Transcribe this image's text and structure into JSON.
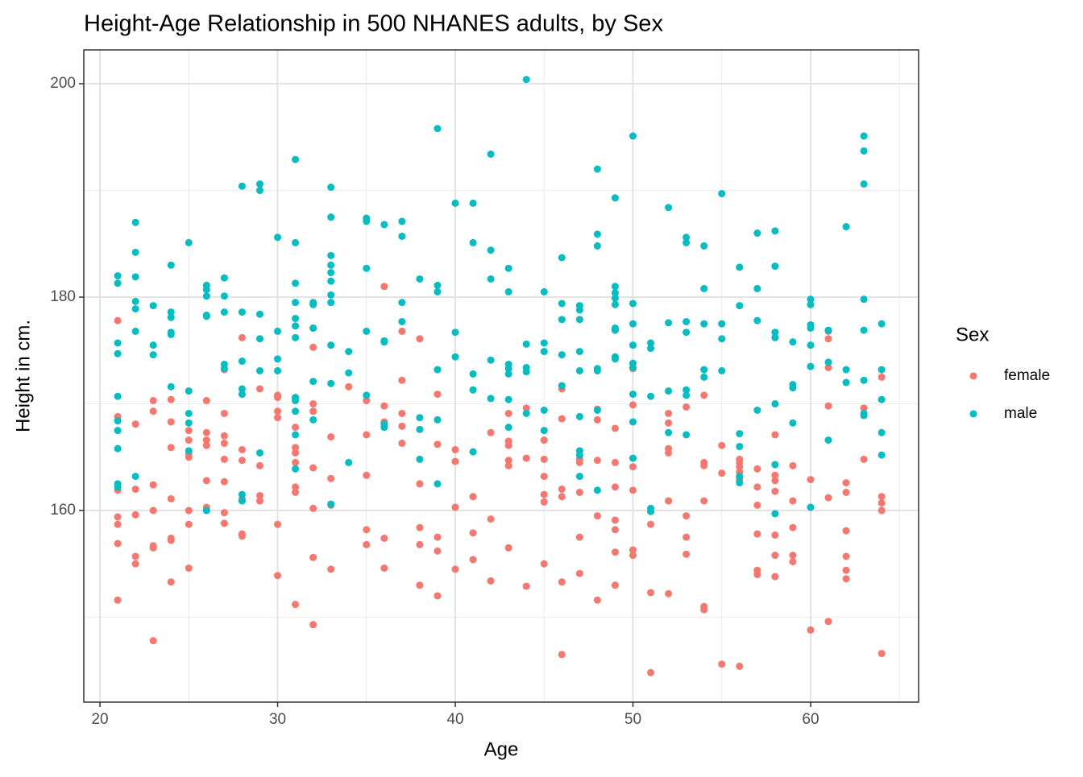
{
  "chart_data": {
    "type": "scatter",
    "title": "Height-Age Relationship in 500 NHANES adults, by Sex",
    "x_label": "Age",
    "y_label": "Height in cm.",
    "legend_title": "Sex",
    "legend": "right",
    "grid": true,
    "xlim": [
      19.09,
      66.08
    ],
    "xticks": [
      20,
      30,
      40,
      50,
      60
    ],
    "ylim": [
      142.04,
      203.17
    ],
    "yticks": [
      160,
      180,
      200
    ],
    "series": [
      {
        "name": "female",
        "color": "#F8766D",
        "x": [
          21,
          21,
          21,
          21,
          21,
          21,
          21,
          22,
          22,
          22,
          22,
          22,
          23,
          23,
          23,
          23,
          23,
          23,
          23,
          24,
          24,
          24,
          24,
          24,
          24,
          24,
          25,
          25,
          25,
          25,
          25,
          25,
          25,
          26,
          26,
          26,
          26,
          26,
          26,
          27,
          27,
          27,
          27,
          27,
          27,
          27,
          27,
          28,
          28,
          28,
          28,
          28,
          28,
          29,
          29,
          29,
          29,
          30,
          30,
          30,
          30,
          30,
          30,
          31,
          31,
          31,
          31,
          31,
          31,
          31,
          32,
          32,
          32,
          32,
          32,
          32,
          32,
          32,
          33,
          33,
          33,
          33,
          34,
          35,
          35,
          35,
          35,
          35,
          36,
          36,
          36,
          36,
          36,
          37,
          37,
          37,
          37,
          37,
          38,
          38,
          38,
          38,
          38,
          39,
          39,
          39,
          39,
          39,
          40,
          40,
          40,
          40,
          41,
          41,
          41,
          42,
          42,
          42,
          43,
          43,
          43,
          43,
          43,
          43,
          44,
          44,
          44,
          45,
          45,
          45,
          45,
          45,
          45,
          46,
          46,
          46,
          46,
          46,
          46,
          47,
          47,
          47,
          47,
          47,
          48,
          48,
          48,
          48,
          48,
          49,
          49,
          49,
          49,
          49,
          49,
          49,
          49,
          50,
          50,
          50,
          50,
          50,
          50,
          51,
          51,
          51,
          52,
          52,
          52,
          52,
          52,
          52,
          53,
          53,
          53,
          53,
          54,
          54,
          54,
          54,
          54,
          54,
          55,
          55,
          55,
          56,
          56,
          56,
          56,
          56,
          56,
          57,
          57,
          57,
          57,
          57,
          57,
          58,
          58,
          58,
          58,
          58,
          58,
          58,
          59,
          59,
          59,
          59,
          59,
          60,
          60,
          61,
          61,
          61,
          61,
          61,
          61,
          62,
          62,
          62,
          62,
          62,
          62,
          63,
          63,
          64,
          64,
          64,
          64,
          64
        ],
        "values": [
          177.8,
          168.8,
          161.9,
          159.4,
          158.7,
          156.9,
          151.6,
          168.1,
          162.0,
          159.6,
          155.7,
          155.0,
          170.3,
          169.3,
          162.4,
          160.0,
          156.7,
          156.5,
          147.8,
          170.4,
          168.3,
          165.9,
          161.1,
          157.4,
          157.2,
          153.3,
          167.5,
          166.6,
          165.3,
          165.0,
          160.0,
          158.7,
          154.6,
          170.3,
          167.3,
          166.6,
          166.1,
          162.8,
          160.3,
          173.2,
          169.1,
          167.0,
          166.3,
          164.8,
          162.7,
          159.8,
          158.8,
          176.2,
          165.7,
          164.7,
          161.1,
          157.8,
          157.6,
          171.4,
          164.2,
          161.4,
          160.9,
          170.8,
          170.6,
          169.3,
          168.7,
          158.7,
          153.9,
          167.8,
          165.9,
          165.4,
          164.5,
          162.2,
          161.7,
          151.2,
          177.1,
          175.3,
          170.0,
          169.3,
          164.0,
          160.2,
          155.6,
          149.3,
          166.9,
          163.0,
          160.5,
          154.5,
          171.6,
          170.3,
          167.1,
          163.3,
          158.2,
          156.8,
          181.0,
          169.8,
          168.3,
          157.4,
          154.6,
          176.8,
          172.2,
          169.1,
          167.9,
          166.3,
          176.1,
          162.5,
          158.4,
          156.8,
          153.0,
          170.9,
          166.2,
          157.5,
          156.2,
          152.0,
          165.7,
          164.6,
          160.3,
          154.5,
          161.3,
          157.9,
          155.4,
          167.3,
          159.2,
          153.4,
          169.1,
          166.5,
          166.1,
          164.7,
          164.2,
          156.5,
          169.6,
          164.9,
          152.9,
          166.6,
          164.8,
          163.2,
          161.5,
          160.8,
          155.0,
          171.4,
          168.6,
          162.0,
          161.3,
          153.3,
          146.5,
          164.8,
          164.5,
          161.7,
          157.5,
          154.1,
          169.5,
          168.5,
          164.7,
          159.5,
          151.6,
          176.9,
          167.7,
          164.5,
          162.2,
          159.1,
          158.2,
          156.1,
          153.0,
          173.3,
          169.9,
          164.1,
          161.9,
          156.3,
          155.8,
          158.7,
          152.3,
          144.8,
          169.1,
          168.2,
          165.8,
          165.4,
          160.9,
          152.2,
          169.7,
          159.5,
          157.5,
          155.9,
          170.8,
          164.5,
          164.2,
          160.9,
          151.0,
          150.7,
          166.1,
          163.5,
          145.6,
          164.8,
          164.5,
          164.1,
          163.6,
          162.9,
          145.4,
          163.9,
          162.2,
          160.5,
          157.8,
          154.4,
          154.0,
          167.1,
          163.3,
          162.8,
          161.8,
          157.7,
          155.8,
          153.8,
          164.2,
          160.9,
          158.4,
          155.8,
          155.2,
          162.9,
          148.8,
          176.8,
          176.1,
          173.4,
          169.8,
          161.2,
          149.6,
          162.6,
          161.7,
          158.1,
          155.7,
          154.4,
          153.6,
          169.6,
          164.8,
          172.5,
          161.3,
          160.7,
          160.0,
          146.6
        ]
      },
      {
        "name": "male",
        "color": "#00BFC4",
        "x": [
          21,
          21,
          21,
          21,
          21,
          21,
          21,
          21,
          21,
          21,
          22,
          22,
          22,
          22,
          22,
          22,
          22,
          23,
          23,
          23,
          24,
          24,
          24,
          24,
          24,
          24,
          25,
          25,
          25,
          25,
          25,
          26,
          26,
          26,
          26,
          26,
          26,
          27,
          27,
          27,
          27,
          27,
          28,
          28,
          28,
          28,
          28,
          28,
          28,
          29,
          29,
          29,
          29,
          29,
          29,
          30,
          30,
          30,
          30,
          31,
          31,
          31,
          31,
          31,
          31,
          31,
          31,
          31,
          31,
          31,
          31,
          32,
          32,
          32,
          32,
          32,
          33,
          33,
          33,
          33,
          33,
          33,
          33,
          33,
          33,
          33,
          33,
          34,
          34,
          34,
          35,
          35,
          35,
          35,
          35,
          36,
          36,
          36,
          36,
          36,
          37,
          37,
          37,
          37,
          38,
          38,
          38,
          38,
          39,
          39,
          39,
          39,
          39,
          39,
          40,
          40,
          40,
          41,
          41,
          41,
          41,
          41,
          42,
          42,
          42,
          42,
          42,
          43,
          43,
          43,
          43,
          43,
          43,
          43,
          44,
          44,
          44,
          44,
          44,
          45,
          45,
          45,
          45,
          45,
          46,
          46,
          46,
          46,
          46,
          47,
          47,
          47,
          47,
          47,
          47,
          47,
          47,
          47,
          48,
          48,
          48,
          48,
          48,
          48,
          48,
          49,
          49,
          49,
          49,
          49,
          49,
          49,
          49,
          49,
          50,
          50,
          50,
          50,
          50,
          50,
          50,
          50,
          50,
          51,
          51,
          51,
          51,
          51,
          52,
          52,
          52,
          52,
          53,
          53,
          53,
          53,
          53,
          53,
          53,
          54,
          54,
          54,
          54,
          54,
          55,
          55,
          55,
          55,
          56,
          56,
          56,
          56,
          56,
          56,
          57,
          57,
          57,
          57,
          58,
          58,
          58,
          58,
          58,
          58,
          58,
          59,
          59,
          59,
          59,
          60,
          60,
          60,
          60,
          60,
          60,
          60,
          61,
          61,
          61,
          62,
          62,
          62,
          63,
          63,
          63,
          63,
          63,
          63,
          63,
          63,
          64,
          64,
          64,
          64,
          64
        ],
        "values": [
          182.0,
          181.3,
          175.7,
          174.7,
          170.7,
          168.4,
          167.5,
          165.8,
          162.5,
          162.2,
          187.0,
          184.2,
          181.9,
          179.6,
          178.9,
          176.8,
          163.2,
          179.2,
          175.5,
          174.6,
          183.0,
          178.6,
          178.1,
          176.7,
          176.5,
          171.6,
          185.1,
          171.2,
          169.1,
          168.2,
          165.6,
          181.1,
          180.7,
          180.1,
          178.3,
          178.2,
          160.0,
          181.8,
          180.1,
          178.6,
          173.7,
          173.3,
          190.4,
          178.6,
          174.0,
          171.4,
          170.9,
          161.5,
          160.9,
          190.6,
          190.0,
          178.4,
          176.1,
          173.1,
          165.4,
          185.6,
          176.8,
          174.2,
          173.1,
          192.9,
          185.1,
          181.3,
          179.5,
          178.0,
          177.3,
          176.2,
          170.6,
          170.3,
          169.3,
          167.1,
          163.9,
          179.5,
          179.3,
          177.1,
          172.1,
          168.5,
          190.3,
          187.5,
          183.9,
          183.0,
          182.3,
          181.5,
          180.2,
          179.5,
          175.5,
          171.9,
          160.6,
          174.9,
          172.9,
          164.5,
          187.4,
          187.1,
          182.7,
          176.8,
          170.8,
          186.8,
          175.9,
          175.8,
          168.1,
          167.8,
          187.1,
          185.7,
          179.5,
          177.7,
          181.7,
          168.7,
          167.6,
          164.8,
          195.8,
          181.1,
          180.5,
          173.2,
          168.5,
          162.5,
          188.8,
          176.7,
          174.4,
          188.8,
          185.1,
          172.8,
          171.3,
          165.5,
          193.4,
          184.4,
          181.7,
          174.1,
          170.5,
          182.7,
          180.5,
          173.7,
          173.3,
          172.8,
          170.4,
          167.8,
          200.4,
          175.6,
          173.4,
          173.0,
          169.1,
          180.5,
          175.7,
          174.9,
          169.4,
          167.5,
          183.7,
          179.4,
          177.9,
          174.6,
          171.7,
          179.2,
          178.8,
          177.9,
          174.9,
          173.1,
          168.8,
          165.6,
          165.2,
          163.2,
          192.0,
          185.9,
          184.8,
          173.3,
          173.1,
          169.4,
          161.9,
          189.3,
          181.0,
          180.4,
          179.9,
          179.3,
          177.1,
          176.9,
          174.4,
          174.2,
          195.1,
          179.4,
          177.5,
          175.5,
          173.8,
          173.4,
          170.9,
          168.3,
          164.9,
          175.7,
          175.2,
          170.7,
          160.2,
          159.9,
          188.4,
          177.6,
          171.2,
          167.3,
          185.6,
          185.1,
          177.7,
          176.7,
          171.3,
          170.8,
          167.1,
          184.8,
          180.8,
          177.5,
          173.2,
          172.5,
          189.7,
          177.5,
          176.1,
          173.1,
          182.8,
          179.2,
          167.2,
          166.0,
          163.2,
          162.6,
          186.0,
          180.8,
          177.8,
          169.4,
          186.2,
          182.9,
          176.7,
          176.2,
          170.0,
          164.3,
          159.7,
          175.8,
          171.8,
          171.5,
          168.2,
          179.8,
          179.3,
          177.4,
          177.1,
          175.5,
          173.5,
          160.3,
          176.9,
          173.9,
          166.6,
          186.6,
          173.2,
          172.0,
          195.1,
          193.7,
          190.6,
          179.8,
          176.9,
          172.2,
          169.1,
          168.9,
          177.5,
          173.2,
          170.4,
          167.3,
          165.2
        ]
      }
    ]
  }
}
